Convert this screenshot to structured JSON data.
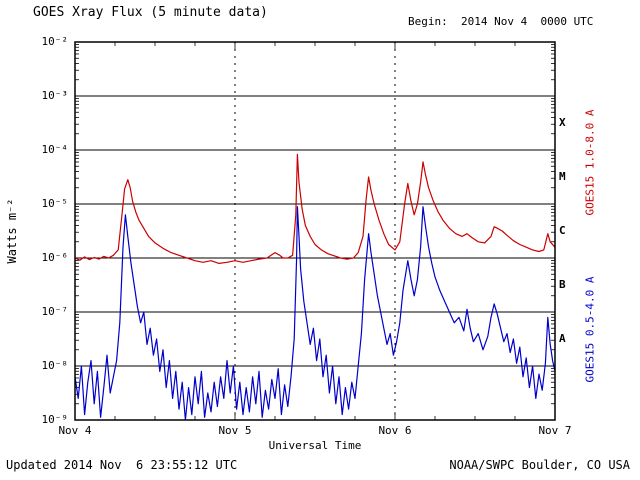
{
  "header": {
    "title": "GOES Xray Flux (5 minute data)",
    "begin_label": "Begin:  2014 Nov 4  0000 UTC"
  },
  "footer": {
    "updated": "Updated 2014 Nov  6 23:55:12 UTC",
    "source": "NOAA/SWPC Boulder, CO USA"
  },
  "right_labels": {
    "long": "GOES15 1.0-8.0 A",
    "short": "GOES15 0.5-4.0 A"
  },
  "axes": {
    "y_ticks": [
      "10⁻²",
      "10⁻³",
      "10⁻⁴",
      "10⁻⁵",
      "10⁻⁶",
      "10⁻⁷",
      "10⁻⁸",
      "10⁻⁹"
    ],
    "x_ticks": [
      "Nov 4",
      "Nov 5",
      "Nov 6",
      "Nov 7"
    ],
    "class_letters": [
      {
        "label": "X",
        "log10_mid": -3.5
      },
      {
        "label": "M",
        "log10_mid": -4.5
      },
      {
        "label": "C",
        "log10_mid": -5.5
      },
      {
        "label": "B",
        "log10_mid": -6.5
      },
      {
        "label": "A",
        "log10_mid": -7.5
      }
    ]
  },
  "colors": {
    "long": "#cc0000",
    "short": "#0000cc",
    "grid": "#000000",
    "frame": "#000000"
  },
  "chart_data": {
    "type": "line",
    "title": "GOES Xray Flux (5 minute data)",
    "xlabel": "Universal Time",
    "ylabel": "Watts m⁻²",
    "x_unit": "days since Begin (2014 Nov 4 0000 UTC)",
    "x_range": [
      0,
      3
    ],
    "y_scale": "log10",
    "y_range_log10": [
      -9,
      -2
    ],
    "x_tick_labels": [
      "Nov 4",
      "Nov 5",
      "Nov 6",
      "Nov 7"
    ],
    "grid": "decades solid horizontal, day boundaries dashed vertical",
    "legend_position": "rotated right edge",
    "series": [
      {
        "name": "GOES15 1.0-8.0 A",
        "color": "#cc0000",
        "x": [
          0.0,
          0.03,
          0.06,
          0.09,
          0.12,
          0.15,
          0.18,
          0.21,
          0.24,
          0.27,
          0.29,
          0.31,
          0.33,
          0.345,
          0.36,
          0.38,
          0.4,
          0.43,
          0.46,
          0.5,
          0.55,
          0.6,
          0.65,
          0.7,
          0.75,
          0.8,
          0.85,
          0.9,
          0.95,
          1.0,
          1.05,
          1.1,
          1.15,
          1.2,
          1.25,
          1.28,
          1.3,
          1.33,
          1.36,
          1.38,
          1.39,
          1.4,
          1.42,
          1.44,
          1.47,
          1.5,
          1.54,
          1.58,
          1.62,
          1.66,
          1.7,
          1.74,
          1.77,
          1.8,
          1.82,
          1.835,
          1.85,
          1.87,
          1.9,
          1.93,
          1.96,
          2.0,
          2.03,
          2.06,
          2.08,
          2.1,
          2.12,
          2.14,
          2.16,
          2.175,
          2.19,
          2.21,
          2.24,
          2.27,
          2.3,
          2.34,
          2.38,
          2.42,
          2.45,
          2.48,
          2.52,
          2.56,
          2.6,
          2.62,
          2.64,
          2.67,
          2.7,
          2.74,
          2.78,
          2.82,
          2.86,
          2.9,
          2.93,
          2.955,
          2.97,
          3.0
        ],
        "log10_flux": [
          -6.0,
          -6.04,
          -5.98,
          -6.03,
          -5.99,
          -6.02,
          -5.97,
          -6.0,
          -5.95,
          -5.85,
          -5.3,
          -4.72,
          -4.55,
          -4.7,
          -4.95,
          -5.15,
          -5.3,
          -5.45,
          -5.6,
          -5.72,
          -5.82,
          -5.9,
          -5.95,
          -6.0,
          -6.05,
          -6.08,
          -6.05,
          -6.1,
          -6.08,
          -6.05,
          -6.08,
          -6.05,
          -6.02,
          -6.0,
          -5.9,
          -5.95,
          -6.0,
          -6.0,
          -5.95,
          -5.2,
          -4.08,
          -4.6,
          -5.1,
          -5.4,
          -5.6,
          -5.75,
          -5.85,
          -5.92,
          -5.96,
          -6.0,
          -6.02,
          -6.0,
          -5.9,
          -5.6,
          -4.9,
          -4.5,
          -4.75,
          -5.0,
          -5.3,
          -5.55,
          -5.75,
          -5.85,
          -5.7,
          -5.0,
          -4.62,
          -4.95,
          -5.2,
          -5.0,
          -4.6,
          -4.22,
          -4.45,
          -4.7,
          -4.95,
          -5.15,
          -5.3,
          -5.45,
          -5.55,
          -5.6,
          -5.55,
          -5.62,
          -5.7,
          -5.72,
          -5.6,
          -5.42,
          -5.45,
          -5.5,
          -5.58,
          -5.68,
          -5.75,
          -5.8,
          -5.85,
          -5.88,
          -5.85,
          -5.55,
          -5.7,
          -5.8
        ]
      },
      {
        "name": "GOES15 0.5-4.0 A",
        "color": "#0000cc",
        "x": [
          0.0,
          0.02,
          0.04,
          0.06,
          0.08,
          0.1,
          0.12,
          0.14,
          0.16,
          0.18,
          0.2,
          0.22,
          0.24,
          0.26,
          0.28,
          0.3,
          0.315,
          0.33,
          0.35,
          0.37,
          0.39,
          0.41,
          0.43,
          0.45,
          0.47,
          0.49,
          0.51,
          0.53,
          0.55,
          0.57,
          0.59,
          0.61,
          0.63,
          0.65,
          0.67,
          0.69,
          0.71,
          0.73,
          0.75,
          0.77,
          0.79,
          0.81,
          0.83,
          0.85,
          0.87,
          0.89,
          0.91,
          0.93,
          0.95,
          0.97,
          0.99,
          1.01,
          1.03,
          1.05,
          1.07,
          1.09,
          1.11,
          1.13,
          1.15,
          1.17,
          1.19,
          1.21,
          1.23,
          1.25,
          1.27,
          1.29,
          1.31,
          1.33,
          1.35,
          1.37,
          1.385,
          1.39,
          1.4,
          1.41,
          1.43,
          1.45,
          1.47,
          1.49,
          1.51,
          1.53,
          1.55,
          1.57,
          1.59,
          1.61,
          1.63,
          1.65,
          1.67,
          1.69,
          1.71,
          1.73,
          1.75,
          1.77,
          1.79,
          1.81,
          1.835,
          1.85,
          1.87,
          1.89,
          1.91,
          1.93,
          1.95,
          1.97,
          1.99,
          2.01,
          2.03,
          2.05,
          2.08,
          2.1,
          2.12,
          2.14,
          2.16,
          2.175,
          2.19,
          2.21,
          2.23,
          2.25,
          2.28,
          2.31,
          2.34,
          2.37,
          2.4,
          2.43,
          2.45,
          2.47,
          2.49,
          2.52,
          2.55,
          2.58,
          2.6,
          2.62,
          2.64,
          2.66,
          2.68,
          2.7,
          2.72,
          2.74,
          2.76,
          2.78,
          2.8,
          2.82,
          2.84,
          2.86,
          2.88,
          2.9,
          2.92,
          2.94,
          2.955,
          2.97,
          2.985,
          3.0
        ],
        "log10_flux": [
          -8.2,
          -8.6,
          -8.0,
          -8.9,
          -8.3,
          -7.9,
          -8.7,
          -8.1,
          -8.95,
          -8.4,
          -7.8,
          -8.5,
          -8.2,
          -7.9,
          -7.2,
          -5.8,
          -5.2,
          -5.6,
          -6.1,
          -6.5,
          -6.9,
          -7.2,
          -7.0,
          -7.6,
          -7.3,
          -7.8,
          -7.5,
          -8.1,
          -7.7,
          -8.4,
          -7.9,
          -8.6,
          -8.1,
          -8.8,
          -8.3,
          -9.0,
          -8.4,
          -8.9,
          -8.2,
          -8.7,
          -8.1,
          -8.95,
          -8.5,
          -8.85,
          -8.3,
          -8.75,
          -8.2,
          -8.6,
          -7.9,
          -8.5,
          -8.0,
          -8.8,
          -8.3,
          -8.9,
          -8.4,
          -8.85,
          -8.2,
          -8.7,
          -8.1,
          -8.95,
          -8.45,
          -8.8,
          -8.25,
          -8.6,
          -8.05,
          -8.9,
          -8.35,
          -8.75,
          -8.2,
          -7.5,
          -6.0,
          -5.05,
          -5.6,
          -6.2,
          -6.8,
          -7.2,
          -7.6,
          -7.3,
          -7.9,
          -7.5,
          -8.2,
          -7.8,
          -8.5,
          -8.0,
          -8.7,
          -8.2,
          -8.9,
          -8.4,
          -8.8,
          -8.3,
          -8.6,
          -8.0,
          -7.4,
          -6.4,
          -5.55,
          -5.9,
          -6.3,
          -6.7,
          -7.0,
          -7.3,
          -7.6,
          -7.4,
          -7.8,
          -7.55,
          -7.2,
          -6.6,
          -6.05,
          -6.4,
          -6.7,
          -6.4,
          -5.8,
          -5.05,
          -5.4,
          -5.8,
          -6.1,
          -6.35,
          -6.6,
          -6.8,
          -7.0,
          -7.2,
          -7.1,
          -7.35,
          -6.95,
          -7.3,
          -7.55,
          -7.4,
          -7.7,
          -7.45,
          -7.1,
          -6.85,
          -7.05,
          -7.3,
          -7.55,
          -7.4,
          -7.75,
          -7.5,
          -7.95,
          -7.65,
          -8.2,
          -7.85,
          -8.4,
          -8.0,
          -8.6,
          -8.15,
          -8.45,
          -7.95,
          -7.1,
          -7.6,
          -7.9,
          -8.1
        ]
      }
    ]
  }
}
